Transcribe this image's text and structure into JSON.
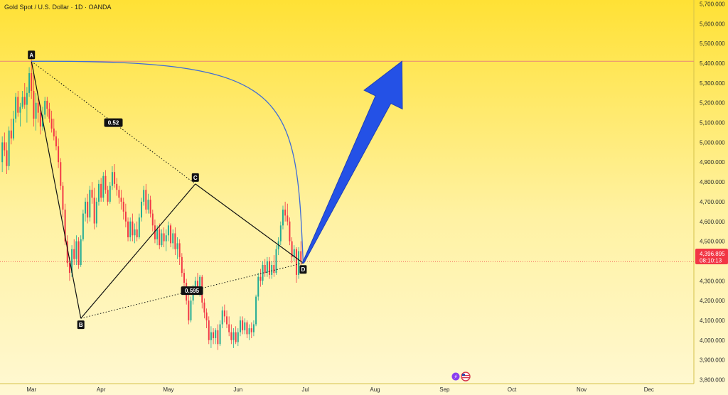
{
  "header": {
    "title": "Gold Spot / U.S. Dollar · 1D · OANDA"
  },
  "price_tag": {
    "price": "4,396.895",
    "countdown": "08:10:13"
  },
  "colors": {
    "up": "#22ab94",
    "down": "#f23645",
    "background_top": "#ffe135",
    "background_bottom": "#fff8d2",
    "arrow": "#2451e6",
    "arc": "#3e6bd8",
    "hline": "#e8877a",
    "price_tag": "#f23645"
  },
  "icons": [
    "lightning-icon",
    "us-flag-icon"
  ],
  "chart_data": {
    "type": "candlestick",
    "title": "Gold Spot / U.S. Dollar · 1D · OANDA",
    "x_ticks": [
      {
        "label": "Mar",
        "x": 0
      },
      {
        "label": "Apr",
        "x": 31
      },
      {
        "label": "May",
        "x": 61
      },
      {
        "label": "Jun",
        "x": 92
      },
      {
        "label": "Jul",
        "x": 122
      },
      {
        "label": "Aug",
        "x": 153
      },
      {
        "label": "Sep",
        "x": 184
      },
      {
        "label": "Oct",
        "x": 214
      },
      {
        "label": "Nov",
        "x": 245
      },
      {
        "label": "Dec",
        "x": 275
      }
    ],
    "x_unit": "days from Mar 1",
    "xlim": [
      -14,
      295
    ],
    "y_ticks": [
      3800,
      3900,
      4000,
      4100,
      4200,
      4300,
      4400,
      4500,
      4600,
      4700,
      4800,
      4900,
      5000,
      5100,
      5200,
      5300,
      5400,
      5500,
      5600,
      5700
    ],
    "y_tick_labels": [
      "3,800.000",
      "3,900.000",
      "4,000.000",
      "4,100.000",
      "4,200.000",
      "4,300.000",
      "4,400.000",
      "4,500.000",
      "4,600.000",
      "4,700.000",
      "4,800.000",
      "4,900.000",
      "5,000.000",
      "5,100.000",
      "5,200.000",
      "5,300.000",
      "5,400.000",
      "5,500.000",
      "5,600.000",
      "5,700.000"
    ],
    "ylim": [
      3780,
      5720
    ],
    "last_price": 4396.895,
    "candles": [
      {
        "x": -13,
        "o": 4900,
        "h": 5030,
        "l": 4850,
        "c": 5000
      },
      {
        "x": -12,
        "o": 5000,
        "h": 5050,
        "l": 4930,
        "c": 4960
      },
      {
        "x": -11,
        "o": 4960,
        "h": 5000,
        "l": 4840,
        "c": 4880
      },
      {
        "x": -10,
        "o": 4880,
        "h": 5080,
        "l": 4860,
        "c": 5060
      },
      {
        "x": -9,
        "o": 5060,
        "h": 5120,
        "l": 4990,
        "c": 5020
      },
      {
        "x": -8,
        "o": 5020,
        "h": 5160,
        "l": 5010,
        "c": 5120
      },
      {
        "x": -7,
        "o": 5120,
        "h": 5250,
        "l": 5100,
        "c": 5230
      },
      {
        "x": -6,
        "o": 5230,
        "h": 5260,
        "l": 5130,
        "c": 5150
      },
      {
        "x": -5,
        "o": 5150,
        "h": 5200,
        "l": 5080,
        "c": 5180
      },
      {
        "x": -4,
        "o": 5180,
        "h": 5260,
        "l": 5170,
        "c": 5230
      },
      {
        "x": -3,
        "o": 5230,
        "h": 5300,
        "l": 5170,
        "c": 5190
      },
      {
        "x": -2,
        "o": 5190,
        "h": 5280,
        "l": 5100,
        "c": 5250
      },
      {
        "x": -1,
        "o": 5250,
        "h": 5380,
        "l": 5230,
        "c": 5350
      },
      {
        "x": 0,
        "o": 5350,
        "h": 5420,
        "l": 5220,
        "c": 5260
      },
      {
        "x": 1,
        "o": 5260,
        "h": 5340,
        "l": 5080,
        "c": 5120
      },
      {
        "x": 2,
        "o": 5120,
        "h": 5250,
        "l": 5060,
        "c": 5200
      },
      {
        "x": 3,
        "o": 5200,
        "h": 5230,
        "l": 5100,
        "c": 5150
      },
      {
        "x": 4,
        "o": 5150,
        "h": 5190,
        "l": 5040,
        "c": 5080
      },
      {
        "x": 5,
        "o": 5080,
        "h": 5180,
        "l": 5060,
        "c": 5140
      },
      {
        "x": 6,
        "o": 5140,
        "h": 5230,
        "l": 5120,
        "c": 5210
      },
      {
        "x": 7,
        "o": 5210,
        "h": 5230,
        "l": 5130,
        "c": 5170
      },
      {
        "x": 8,
        "o": 5170,
        "h": 5200,
        "l": 5100,
        "c": 5120
      },
      {
        "x": 9,
        "o": 5120,
        "h": 5160,
        "l": 5050,
        "c": 5070
      },
      {
        "x": 10,
        "o": 5070,
        "h": 5120,
        "l": 5010,
        "c": 5030
      },
      {
        "x": 11,
        "o": 5030,
        "h": 5060,
        "l": 4960,
        "c": 4980
      },
      {
        "x": 12,
        "o": 4980,
        "h": 5020,
        "l": 4870,
        "c": 4900
      },
      {
        "x": 13,
        "o": 4900,
        "h": 4920,
        "l": 4760,
        "c": 4780
      },
      {
        "x": 14,
        "o": 4780,
        "h": 4800,
        "l": 4620,
        "c": 4660
      },
      {
        "x": 15,
        "o": 4660,
        "h": 4690,
        "l": 4480,
        "c": 4500
      },
      {
        "x": 16,
        "o": 4500,
        "h": 4530,
        "l": 4370,
        "c": 4390
      },
      {
        "x": 17,
        "o": 4390,
        "h": 4420,
        "l": 4300,
        "c": 4340
      },
      {
        "x": 18,
        "o": 4340,
        "h": 4480,
        "l": 4320,
        "c": 4460
      },
      {
        "x": 19,
        "o": 4460,
        "h": 4510,
        "l": 4380,
        "c": 4410
      },
      {
        "x": 20,
        "o": 4410,
        "h": 4530,
        "l": 4380,
        "c": 4500
      },
      {
        "x": 21,
        "o": 4500,
        "h": 4520,
        "l": 4360,
        "c": 4380
      },
      {
        "x": 22,
        "o": 4380,
        "h": 4530,
        "l": 4370,
        "c": 4510
      },
      {
        "x": 23,
        "o": 4510,
        "h": 4660,
        "l": 4500,
        "c": 4640
      },
      {
        "x": 24,
        "o": 4640,
        "h": 4720,
        "l": 4600,
        "c": 4700
      },
      {
        "x": 25,
        "o": 4700,
        "h": 4740,
        "l": 4590,
        "c": 4620
      },
      {
        "x": 26,
        "o": 4620,
        "h": 4780,
        "l": 4600,
        "c": 4760
      },
      {
        "x": 27,
        "o": 4760,
        "h": 4800,
        "l": 4690,
        "c": 4720
      },
      {
        "x": 28,
        "o": 4720,
        "h": 4770,
        "l": 4560,
        "c": 4590
      },
      {
        "x": 29,
        "o": 4590,
        "h": 4720,
        "l": 4570,
        "c": 4700
      },
      {
        "x": 30,
        "o": 4700,
        "h": 4810,
        "l": 4680,
        "c": 4790
      },
      {
        "x": 31,
        "o": 4790,
        "h": 4820,
        "l": 4700,
        "c": 4720
      },
      {
        "x": 32,
        "o": 4720,
        "h": 4850,
        "l": 4700,
        "c": 4830
      },
      {
        "x": 33,
        "o": 4830,
        "h": 4860,
        "l": 4740,
        "c": 4760
      },
      {
        "x": 34,
        "o": 4760,
        "h": 4780,
        "l": 4680,
        "c": 4700
      },
      {
        "x": 35,
        "o": 4700,
        "h": 4800,
        "l": 4690,
        "c": 4780
      },
      {
        "x": 36,
        "o": 4780,
        "h": 4880,
        "l": 4760,
        "c": 4850
      },
      {
        "x": 37,
        "o": 4850,
        "h": 4890,
        "l": 4770,
        "c": 4790
      },
      {
        "x": 38,
        "o": 4790,
        "h": 4820,
        "l": 4730,
        "c": 4760
      },
      {
        "x": 39,
        "o": 4760,
        "h": 4780,
        "l": 4690,
        "c": 4720
      },
      {
        "x": 40,
        "o": 4720,
        "h": 4760,
        "l": 4660,
        "c": 4700
      },
      {
        "x": 41,
        "o": 4700,
        "h": 4720,
        "l": 4610,
        "c": 4650
      },
      {
        "x": 42,
        "o": 4650,
        "h": 4690,
        "l": 4570,
        "c": 4600
      },
      {
        "x": 43,
        "o": 4600,
        "h": 4620,
        "l": 4500,
        "c": 4520
      },
      {
        "x": 44,
        "o": 4520,
        "h": 4620,
        "l": 4500,
        "c": 4600
      },
      {
        "x": 45,
        "o": 4600,
        "h": 4640,
        "l": 4500,
        "c": 4530
      },
      {
        "x": 46,
        "o": 4530,
        "h": 4590,
        "l": 4490,
        "c": 4560
      },
      {
        "x": 47,
        "o": 4560,
        "h": 4600,
        "l": 4500,
        "c": 4520
      },
      {
        "x": 48,
        "o": 4520,
        "h": 4640,
        "l": 4510,
        "c": 4620
      },
      {
        "x": 49,
        "o": 4620,
        "h": 4720,
        "l": 4600,
        "c": 4700
      },
      {
        "x": 50,
        "o": 4700,
        "h": 4780,
        "l": 4680,
        "c": 4760
      },
      {
        "x": 51,
        "o": 4760,
        "h": 4790,
        "l": 4640,
        "c": 4660
      },
      {
        "x": 52,
        "o": 4660,
        "h": 4740,
        "l": 4640,
        "c": 4710
      },
      {
        "x": 53,
        "o": 4710,
        "h": 4730,
        "l": 4620,
        "c": 4640
      },
      {
        "x": 54,
        "o": 4640,
        "h": 4660,
        "l": 4550,
        "c": 4580
      },
      {
        "x": 55,
        "o": 4580,
        "h": 4610,
        "l": 4490,
        "c": 4510
      },
      {
        "x": 56,
        "o": 4510,
        "h": 4580,
        "l": 4480,
        "c": 4560
      },
      {
        "x": 57,
        "o": 4560,
        "h": 4590,
        "l": 4460,
        "c": 4480
      },
      {
        "x": 58,
        "o": 4480,
        "h": 4560,
        "l": 4470,
        "c": 4540
      },
      {
        "x": 59,
        "o": 4540,
        "h": 4570,
        "l": 4470,
        "c": 4500
      },
      {
        "x": 60,
        "o": 4500,
        "h": 4560,
        "l": 4450,
        "c": 4530
      },
      {
        "x": 61,
        "o": 4530,
        "h": 4600,
        "l": 4500,
        "c": 4580
      },
      {
        "x": 62,
        "o": 4580,
        "h": 4590,
        "l": 4470,
        "c": 4490
      },
      {
        "x": 63,
        "o": 4490,
        "h": 4560,
        "l": 4460,
        "c": 4540
      },
      {
        "x": 64,
        "o": 4540,
        "h": 4570,
        "l": 4430,
        "c": 4460
      },
      {
        "x": 65,
        "o": 4460,
        "h": 4520,
        "l": 4410,
        "c": 4490
      },
      {
        "x": 66,
        "o": 4490,
        "h": 4510,
        "l": 4380,
        "c": 4420
      },
      {
        "x": 67,
        "o": 4420,
        "h": 4440,
        "l": 4320,
        "c": 4340
      },
      {
        "x": 68,
        "o": 4340,
        "h": 4360,
        "l": 4260,
        "c": 4290
      },
      {
        "x": 69,
        "o": 4290,
        "h": 4310,
        "l": 4180,
        "c": 4200
      },
      {
        "x": 70,
        "o": 4200,
        "h": 4230,
        "l": 4080,
        "c": 4100
      },
      {
        "x": 71,
        "o": 4100,
        "h": 4220,
        "l": 4090,
        "c": 4200
      },
      {
        "x": 72,
        "o": 4200,
        "h": 4280,
        "l": 4180,
        "c": 4260
      },
      {
        "x": 73,
        "o": 4260,
        "h": 4320,
        "l": 4230,
        "c": 4300
      },
      {
        "x": 74,
        "o": 4300,
        "h": 4340,
        "l": 4240,
        "c": 4260
      },
      {
        "x": 75,
        "o": 4260,
        "h": 4330,
        "l": 4220,
        "c": 4320
      },
      {
        "x": 76,
        "o": 4320,
        "h": 4330,
        "l": 4160,
        "c": 4190
      },
      {
        "x": 77,
        "o": 4190,
        "h": 4210,
        "l": 4110,
        "c": 4140
      },
      {
        "x": 78,
        "o": 4140,
        "h": 4160,
        "l": 4060,
        "c": 4100
      },
      {
        "x": 79,
        "o": 4100,
        "h": 4120,
        "l": 3980,
        "c": 4000
      },
      {
        "x": 80,
        "o": 4000,
        "h": 4070,
        "l": 3960,
        "c": 4040
      },
      {
        "x": 81,
        "o": 4040,
        "h": 4060,
        "l": 3980,
        "c": 4010
      },
      {
        "x": 82,
        "o": 4010,
        "h": 4060,
        "l": 3980,
        "c": 4050
      },
      {
        "x": 83,
        "o": 4050,
        "h": 4080,
        "l": 3950,
        "c": 3980
      },
      {
        "x": 84,
        "o": 3980,
        "h": 4100,
        "l": 3970,
        "c": 4080
      },
      {
        "x": 85,
        "o": 4080,
        "h": 4170,
        "l": 4060,
        "c": 4150
      },
      {
        "x": 86,
        "o": 4150,
        "h": 4180,
        "l": 4090,
        "c": 4120
      },
      {
        "x": 87,
        "o": 4120,
        "h": 4150,
        "l": 4060,
        "c": 4080
      },
      {
        "x": 88,
        "o": 4080,
        "h": 4120,
        "l": 4020,
        "c": 4040
      },
      {
        "x": 89,
        "o": 4040,
        "h": 4080,
        "l": 3980,
        "c": 4000
      },
      {
        "x": 90,
        "o": 4000,
        "h": 4060,
        "l": 3960,
        "c": 4040
      },
      {
        "x": 91,
        "o": 4040,
        "h": 4070,
        "l": 3980,
        "c": 3990
      },
      {
        "x": 92,
        "o": 3990,
        "h": 4060,
        "l": 3970,
        "c": 4040
      },
      {
        "x": 93,
        "o": 4040,
        "h": 4120,
        "l": 4020,
        "c": 4100
      },
      {
        "x": 94,
        "o": 4100,
        "h": 4120,
        "l": 4030,
        "c": 4050
      },
      {
        "x": 95,
        "o": 4050,
        "h": 4110,
        "l": 4030,
        "c": 4090
      },
      {
        "x": 96,
        "o": 4090,
        "h": 4100,
        "l": 4010,
        "c": 4030
      },
      {
        "x": 97,
        "o": 4030,
        "h": 4080,
        "l": 4000,
        "c": 4060
      },
      {
        "x": 98,
        "o": 4060,
        "h": 4090,
        "l": 4010,
        "c": 4040
      },
      {
        "x": 99,
        "o": 4040,
        "h": 4100,
        "l": 4020,
        "c": 4080
      },
      {
        "x": 100,
        "o": 4080,
        "h": 4230,
        "l": 4070,
        "c": 4220
      },
      {
        "x": 101,
        "o": 4220,
        "h": 4340,
        "l": 4200,
        "c": 4320
      },
      {
        "x": 102,
        "o": 4320,
        "h": 4360,
        "l": 4270,
        "c": 4300
      },
      {
        "x": 103,
        "o": 4300,
        "h": 4400,
        "l": 4280,
        "c": 4380
      },
      {
        "x": 104,
        "o": 4380,
        "h": 4410,
        "l": 4320,
        "c": 4340
      },
      {
        "x": 105,
        "o": 4340,
        "h": 4420,
        "l": 4320,
        "c": 4400
      },
      {
        "x": 106,
        "o": 4400,
        "h": 4420,
        "l": 4310,
        "c": 4330
      },
      {
        "x": 107,
        "o": 4330,
        "h": 4400,
        "l": 4310,
        "c": 4380
      },
      {
        "x": 108,
        "o": 4380,
        "h": 4430,
        "l": 4320,
        "c": 4340
      },
      {
        "x": 109,
        "o": 4340,
        "h": 4480,
        "l": 4330,
        "c": 4460
      },
      {
        "x": 110,
        "o": 4460,
        "h": 4520,
        "l": 4430,
        "c": 4500
      },
      {
        "x": 111,
        "o": 4500,
        "h": 4600,
        "l": 4480,
        "c": 4580
      },
      {
        "x": 112,
        "o": 4580,
        "h": 4680,
        "l": 4560,
        "c": 4660
      },
      {
        "x": 113,
        "o": 4660,
        "h": 4700,
        "l": 4600,
        "c": 4630
      },
      {
        "x": 114,
        "o": 4630,
        "h": 4690,
        "l": 4580,
        "c": 4600
      },
      {
        "x": 115,
        "o": 4600,
        "h": 4620,
        "l": 4480,
        "c": 4500
      },
      {
        "x": 116,
        "o": 4500,
        "h": 4520,
        "l": 4390,
        "c": 4420
      },
      {
        "x": 117,
        "o": 4420,
        "h": 4480,
        "l": 4400,
        "c": 4460
      },
      {
        "x": 118,
        "o": 4460,
        "h": 4470,
        "l": 4290,
        "c": 4330
      },
      {
        "x": 119,
        "o": 4330,
        "h": 4470,
        "l": 4310,
        "c": 4450
      },
      {
        "x": 120,
        "o": 4450,
        "h": 4500,
        "l": 4380,
        "c": 4400
      }
    ],
    "pattern": {
      "points": [
        {
          "label": "A",
          "x": 0,
          "y": 5410
        },
        {
          "label": "B",
          "x": 22,
          "y": 4110
        },
        {
          "label": "C",
          "x": 73,
          "y": 4790
        },
        {
          "label": "D",
          "x": 121,
          "y": 4390
        }
      ],
      "ratios": [
        {
          "label": "0.52",
          "from": "A",
          "to": "C"
        },
        {
          "label": "0.595",
          "from": "B",
          "to": "D"
        }
      ]
    },
    "resistance_level": 5410,
    "projection_target": {
      "x": 165,
      "y": 5410
    },
    "grid": false,
    "legend": "none"
  }
}
